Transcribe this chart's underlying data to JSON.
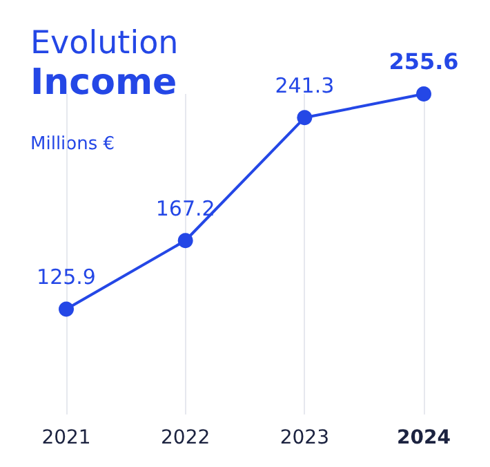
{
  "chart_data": {
    "type": "line",
    "title": "Evolution",
    "subtitle": "Income",
    "ylabel": "Millions €",
    "categories": [
      "2021",
      "2022",
      "2023",
      "2024"
    ],
    "series": [
      {
        "color": "#2447e6",
        "values": [
          125.9,
          167.2,
          241.3,
          255.6
        ]
      }
    ],
    "data_labels": true,
    "grid": "x",
    "marker": "circle",
    "line_style": "solid"
  }
}
